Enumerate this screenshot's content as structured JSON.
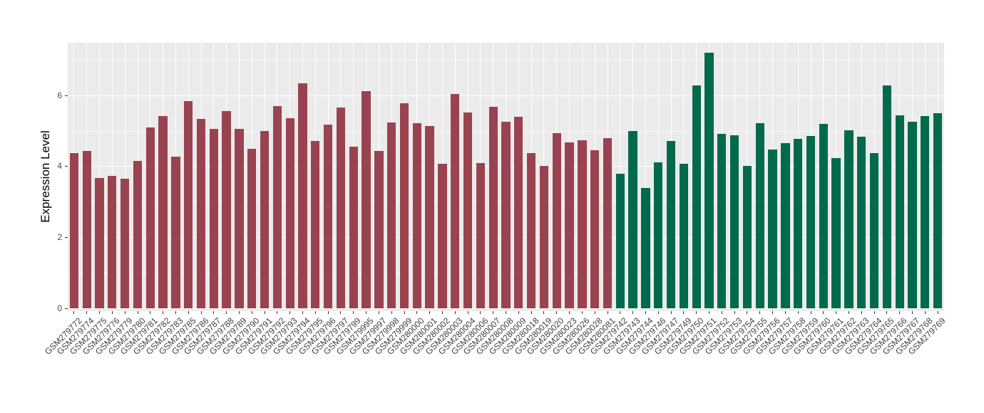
{
  "figure": {
    "background": "#FFFFFF",
    "panel_background": "#EBEBEB",
    "grid_color": "#FFFFFF",
    "axis_text_color": "#4D4D4D",
    "tick_mark_color": "#333333"
  },
  "chart_data": {
    "type": "bar",
    "title": "",
    "xlabel": "",
    "ylabel": "Expression Level",
    "ylim": [
      0,
      7.6
    ],
    "yticks": [
      0,
      2,
      4,
      6
    ],
    "yticks_minor": [
      1,
      3,
      5,
      7
    ],
    "grid": true,
    "legend_position": "none",
    "group_split_index": 43,
    "group_colors": [
      "#9A4350",
      "#016A4C"
    ],
    "categories": [
      "GSM279772",
      "GSM279774",
      "GSM279775",
      "GSM279776",
      "GSM279779",
      "GSM279780",
      "GSM279781",
      "GSM279782",
      "GSM279783",
      "GSM279785",
      "GSM279786",
      "GSM279787",
      "GSM279788",
      "GSM279789",
      "GSM279790",
      "GSM279791",
      "GSM279792",
      "GSM279793",
      "GSM279794",
      "GSM279795",
      "GSM279796",
      "GSM279797",
      "GSM279799",
      "GSM279995",
      "GSM279997",
      "GSM279998",
      "GSM279999",
      "GSM280000",
      "GSM280001",
      "GSM280002",
      "GSM280003",
      "GSM280004",
      "GSM280006",
      "GSM280007",
      "GSM280008",
      "GSM280009",
      "GSM280018",
      "GSM280019",
      "GSM280020",
      "GSM280023",
      "GSM280026",
      "GSM280028",
      "GSM280081",
      "GSM279742",
      "GSM279743",
      "GSM279744",
      "GSM279746",
      "GSM279747",
      "GSM279749",
      "GSM279750",
      "GSM279751",
      "GSM279752",
      "GSM279753",
      "GSM279754",
      "GSM279755",
      "GSM279756",
      "GSM279757",
      "GSM279758",
      "GSM279759",
      "GSM279760",
      "GSM279761",
      "GSM279762",
      "GSM279763",
      "GSM279764",
      "GSM279765",
      "GSM279766",
      "GSM279767",
      "GSM279768",
      "GSM279769"
    ],
    "values": [
      4.36,
      4.42,
      3.66,
      3.72,
      3.65,
      4.15,
      5.09,
      5.42,
      4.26,
      5.83,
      5.33,
      5.06,
      5.55,
      5.06,
      4.48,
      5.0,
      5.69,
      5.35,
      6.34,
      4.72,
      5.17,
      5.65,
      4.56,
      6.11,
      4.43,
      5.24,
      5.78,
      5.22,
      5.14,
      4.07,
      6.03,
      5.51,
      4.09,
      5.67,
      5.25,
      5.39,
      4.36,
      4.01,
      4.93,
      4.67,
      4.73,
      4.45,
      4.79,
      3.79,
      5.0,
      3.39,
      4.1,
      4.72,
      4.06,
      6.28,
      7.19,
      4.92,
      4.88,
      4.01,
      5.21,
      4.46,
      4.66,
      4.77,
      4.86,
      5.2,
      4.23,
      5.01,
      4.83,
      4.37,
      6.28,
      5.43,
      5.26,
      5.41,
      5.5
    ]
  }
}
